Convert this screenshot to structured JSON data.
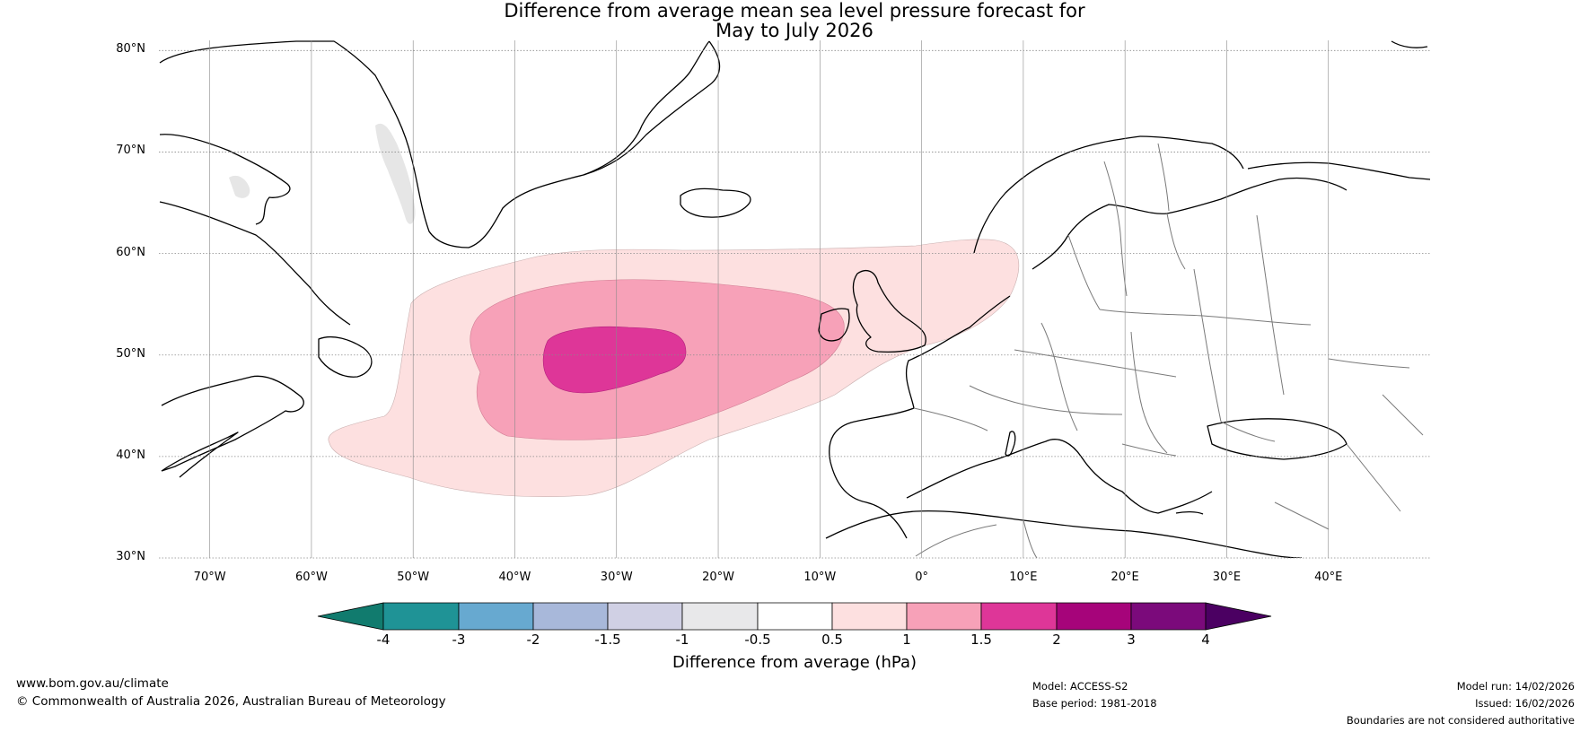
{
  "map": {
    "title_line1": "Difference from average mean sea level pressure forecast for",
    "title_line2": "May to July 2026",
    "lat_ticks": [
      "80°N",
      "70°N",
      "60°N",
      "50°N",
      "40°N",
      "30°N"
    ],
    "lon_ticks": [
      "70°W",
      "60°W",
      "50°W",
      "40°W",
      "30°W",
      "20°W",
      "10°W",
      "0°",
      "10°E",
      "20°E",
      "30°E",
      "40°E"
    ],
    "extent": {
      "lon_min": -75,
      "lon_max": 50,
      "lat_min": 30,
      "lat_max": 81
    },
    "colors": {
      "ocean": "#ffffff",
      "coast": "#000000",
      "border": "#7a7a7a",
      "grid": "#8a8a8a",
      "ice": "#e6e6e6"
    }
  },
  "anomaly_field": {
    "levels_shown": [
      "0.5 to 1 hPa",
      "1 to 1.5 hPa",
      "1.5 to 2 hPa"
    ],
    "colors": {
      "light": "#fde0e0",
      "medium": "#f7a1b8",
      "dark": "#de3698"
    }
  },
  "colorbar": {
    "ticks": [
      "-4",
      "-3",
      "-2",
      "-1.5",
      "-1",
      "-0.5",
      "0.5",
      "1",
      "1.5",
      "2",
      "3",
      "4"
    ],
    "colors": [
      "#117b6e",
      "#1f9396",
      "#67a9d0",
      "#a8b8da",
      "#d0d0e4",
      "#e8e8ea",
      "#ffffff",
      "#fde0e0",
      "#f7a1b8",
      "#de3698",
      "#a6047a",
      "#7b0a7b",
      "#4b0062"
    ],
    "label": "Difference from average (hPa)"
  },
  "footer": {
    "website": "www.bom.gov.au/climate",
    "copyright": "© Commonwealth of Australia 2026, Australian Bureau of Meteorology",
    "model": "Model: ACCESS-S2",
    "base_period": "Base period: 1981-2018",
    "model_run": "Model run: 14/02/2026",
    "issued": "Issued: 16/02/2026",
    "disclaimer": "Boundaries are not considered authoritative"
  }
}
